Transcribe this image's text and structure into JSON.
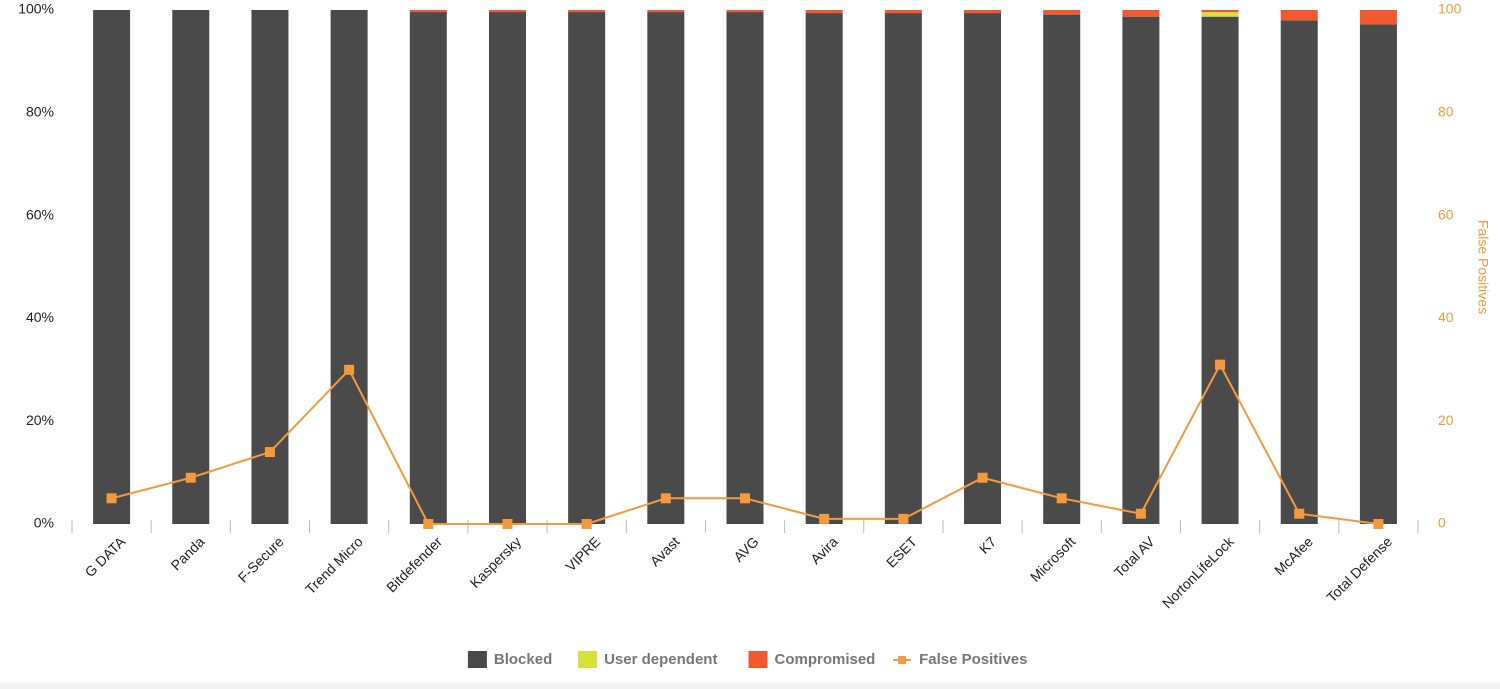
{
  "chart_data": {
    "type": "bar",
    "stacked": true,
    "categories": [
      "G DATA",
      "Panda",
      "F-Secure",
      "Trend Micro",
      "Bitdefender",
      "Kaspersky",
      "VIPRE",
      "Avast",
      "AVG",
      "Avira",
      "ESET",
      "K7",
      "Microsoft",
      "Total AV",
      "NortonLifeLock",
      "McAfee",
      "Total Defense"
    ],
    "series": [
      {
        "name": "Blocked",
        "color": "#4a4a4a",
        "values": [
          100,
          100,
          100,
          100,
          99.6,
          99.6,
          99.6,
          99.6,
          99.6,
          99.4,
          99.4,
          99.4,
          99.1,
          98.7,
          98.7,
          98,
          97.2
        ]
      },
      {
        "name": "User dependent",
        "color": "#d9df3b",
        "values": [
          0,
          0,
          0,
          0,
          0,
          0,
          0,
          0,
          0,
          0,
          0,
          0,
          0,
          0,
          0.9,
          0,
          0
        ]
      },
      {
        "name": "Compromised",
        "color": "#f05a2e",
        "values": [
          0,
          0,
          0,
          0,
          0.4,
          0.4,
          0.4,
          0.4,
          0.4,
          0.6,
          0.6,
          0.6,
          0.9,
          1.3,
          0.4,
          2,
          2.8
        ]
      },
      {
        "name": "False Positives",
        "color": "#f59a3c",
        "type": "line",
        "axis": "y2",
        "values": [
          5,
          9,
          14,
          30,
          0,
          0,
          0,
          5,
          5,
          1,
          1,
          9,
          5,
          2,
          31,
          2,
          0
        ]
      }
    ],
    "ylim": [
      0,
      100
    ],
    "yticks": [
      {
        "value": 0,
        "label": "0%"
      },
      {
        "value": 20,
        "label": "20%"
      },
      {
        "value": 40,
        "label": "40%"
      },
      {
        "value": 60,
        "label": "60%"
      },
      {
        "value": 80,
        "label": "80%"
      },
      {
        "value": 100,
        "label": "100%"
      }
    ],
    "y2label": "False Positives",
    "y2lim": [
      0,
      100
    ],
    "y2ticks": [
      0,
      20,
      40,
      60,
      80,
      100
    ]
  }
}
